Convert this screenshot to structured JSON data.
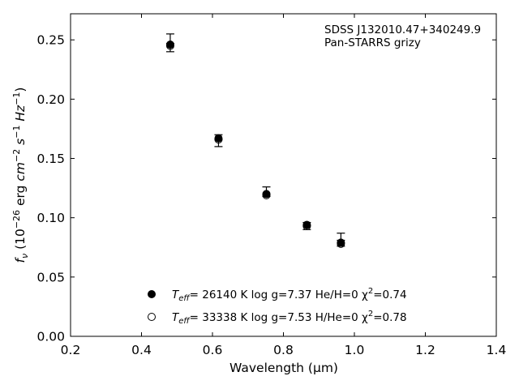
{
  "chart_data": {
    "type": "scatter",
    "xlabel": "Wavelength (μm)",
    "ylabel_parts": [
      "f",
      "ν",
      " (10",
      "−26",
      " erg ",
      "cm",
      "−2",
      " ",
      "s",
      "−1",
      " ",
      "Hz",
      "−1",
      ")"
    ],
    "xlim": [
      0.2,
      1.4
    ],
    "ylim": [
      0.0,
      0.272
    ],
    "xticks": [
      0.2,
      0.4,
      0.6,
      0.8,
      1.0,
      1.2,
      1.4
    ],
    "xtick_labels": [
      "0.2",
      "0.4",
      "0.6",
      "0.8",
      "1.0",
      "1.2",
      "1.4"
    ],
    "yticks": [
      0.0,
      0.05,
      0.1,
      0.15,
      0.2,
      0.25
    ],
    "ytick_labels": [
      "0.00",
      "0.05",
      "0.10",
      "0.15",
      "0.20",
      "0.25"
    ],
    "grid": false,
    "annotation": [
      "SDSS J132010.47+340249.9",
      "Pan-STARRS grizy"
    ],
    "observed": {
      "x": [
        0.481,
        0.617,
        0.752,
        0.866,
        0.962
      ],
      "y": [
        0.247,
        0.166,
        0.12,
        0.093,
        0.081
      ],
      "yerr_low": [
        0.24,
        0.16,
        0.118,
        0.09,
        0.076
      ],
      "yerr_high": [
        0.255,
        0.17,
        0.126,
        0.096,
        0.087
      ]
    },
    "series": [
      {
        "name": "T_eff= 26140 K  log g=7.37  He/H=0  χ²=0.74",
        "marker": "filled",
        "x": [
          0.481,
          0.617,
          0.752,
          0.866,
          0.962
        ],
        "y": [
          0.246,
          0.167,
          0.12,
          0.094,
          0.079
        ]
      },
      {
        "name": "T_eff= 33338 K  log g=7.53  H/He=0  χ²=0.78",
        "marker": "open",
        "x": [
          0.481,
          0.617,
          0.752,
          0.866,
          0.962
        ],
        "y": [
          0.245,
          0.166,
          0.119,
          0.093,
          0.078
        ]
      }
    ],
    "legend_entries": [
      {
        "pre": "T",
        "sub": "eff",
        "mid": "= 26140 K  log g=7.37  He/H=0  χ",
        "sup": "2",
        "post": "=0.74"
      },
      {
        "pre": "T",
        "sub": "eff",
        "mid": "= 33338 K  log g=7.53  H/He=0  χ",
        "sup": "2",
        "post": "=0.78"
      }
    ],
    "legend_position": "lower-center",
    "colors": {
      "marker": "#000000",
      "axes": "#000000",
      "background": "#ffffff"
    }
  }
}
